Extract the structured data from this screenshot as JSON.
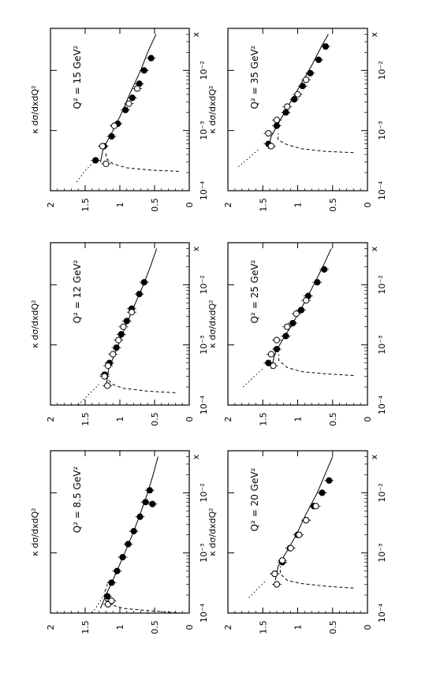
{
  "figure": {
    "orientation": "rotated-90-counterclockwise",
    "xlabel": "x",
    "ylabel": "κ dσ/dxdQ²",
    "xscale": "log",
    "xlim": [
      0.0001,
      0.05
    ],
    "ylim": [
      0,
      2
    ],
    "yticks": [
      "0",
      "0.5",
      "1",
      "1.5",
      "2"
    ],
    "xticks": [
      "10⁻⁴",
      "10⁻³",
      "10⁻²"
    ],
    "legend": "none",
    "grid": false
  },
  "chart_data": [
    {
      "type": "scatter",
      "title": "Q² = 8.5 GeV²",
      "xlabel": "x",
      "ylabel": "κ dσ/dxdQ²",
      "xscale": "log",
      "ylim": [
        0,
        2
      ],
      "series": [
        {
          "marker": "filled-circle",
          "x": [
            0.00019,
            0.00032,
            0.0005,
            0.00085,
            0.0014,
            0.0023,
            0.004,
            0.007,
            0.011
          ],
          "y": [
            1.18,
            1.12,
            1.04,
            0.96,
            0.88,
            0.8,
            0.71,
            0.63,
            0.57
          ]
        },
        {
          "marker": "open-circle",
          "x": [
            0.00014,
            0.00016
          ],
          "y": [
            1.17,
            1.12
          ]
        },
        {
          "marker": "filled-circle",
          "x": [
            0.0065
          ],
          "y": [
            0.53
          ]
        }
      ],
      "curves": [
        {
          "style": "solid",
          "x": [
            0.00012,
            0.0002,
            0.0004,
            0.001,
            0.002,
            0.004,
            0.01,
            0.02,
            0.04
          ],
          "y": [
            1.28,
            1.2,
            1.08,
            0.93,
            0.82,
            0.72,
            0.6,
            0.52,
            0.45
          ]
        },
        {
          "style": "dotted",
          "x": [
            0.0001,
            0.00013,
            0.00018
          ],
          "y": [
            1.4,
            1.33,
            1.25
          ]
        },
        {
          "style": "dashed",
          "x": [
            0.0001,
            0.00011,
            0.00012,
            0.00014,
            0.00017,
            0.00022,
            0.0003
          ],
          "y": [
            0.1,
            0.6,
            0.95,
            1.15,
            1.22,
            1.22,
            1.18
          ]
        }
      ]
    },
    {
      "type": "scatter",
      "title": "Q² = 12 GeV²",
      "xlabel": "x",
      "ylabel": "κ dσ/dxdQ²",
      "xscale": "log",
      "ylim": [
        0,
        2
      ],
      "series": [
        {
          "marker": "filled-circle",
          "x": [
            0.00032,
            0.0005,
            0.0009,
            0.0015,
            0.0025,
            0.004,
            0.007,
            0.011
          ],
          "y": [
            1.22,
            1.15,
            1.05,
            0.98,
            0.9,
            0.83,
            0.72,
            0.65
          ]
        },
        {
          "marker": "open-circle",
          "x": [
            0.00021,
            0.0003,
            0.00045,
            0.0007,
            0.0012,
            0.002,
            0.0035
          ],
          "y": [
            1.18,
            1.22,
            1.17,
            1.1,
            1.02,
            0.95,
            0.83
          ]
        }
      ],
      "curves": [
        {
          "style": "solid",
          "x": [
            0.0002,
            0.0004,
            0.001,
            0.002,
            0.004,
            0.01,
            0.02,
            0.04
          ],
          "y": [
            1.2,
            1.16,
            1.02,
            0.92,
            0.81,
            0.66,
            0.56,
            0.47
          ]
        },
        {
          "style": "dotted",
          "x": [
            0.0001,
            0.00015,
            0.00022
          ],
          "y": [
            1.6,
            1.45,
            1.3
          ]
        },
        {
          "style": "dashed",
          "x": [
            0.00016,
            0.00017,
            0.00019,
            0.00022,
            0.00027,
            0.00035
          ],
          "y": [
            0.2,
            0.6,
            0.95,
            1.1,
            1.18,
            1.18
          ]
        }
      ]
    },
    {
      "type": "scatter",
      "title": "Q² = 15 GeV²",
      "xlabel": "x",
      "ylabel": "κ dσ/dxdQ²",
      "xscale": "log",
      "ylim": [
        0,
        2
      ],
      "series": [
        {
          "marker": "filled-circle",
          "x": [
            0.00032,
            0.00055,
            0.0008,
            0.0013,
            0.0022,
            0.0035,
            0.006,
            0.01,
            0.016
          ],
          "y": [
            1.35,
            1.23,
            1.12,
            1.03,
            0.92,
            0.82,
            0.72,
            0.65,
            0.55
          ]
        },
        {
          "marker": "open-circle",
          "x": [
            0.00028,
            0.00055,
            0.0012,
            0.0028,
            0.005
          ],
          "y": [
            1.2,
            1.25,
            1.08,
            0.87,
            0.75
          ]
        }
      ],
      "curves": [
        {
          "style": "solid",
          "x": [
            0.0003,
            0.0005,
            0.001,
            0.002,
            0.004,
            0.01,
            0.02,
            0.04
          ],
          "y": [
            1.28,
            1.24,
            1.1,
            0.97,
            0.86,
            0.7,
            0.6,
            0.48
          ]
        },
        {
          "style": "dotted",
          "x": [
            0.00014,
            0.0002,
            0.0003
          ],
          "y": [
            1.62,
            1.52,
            1.38
          ]
        },
        {
          "style": "dashed",
          "x": [
            0.00021,
            0.00022,
            0.00024,
            0.00028,
            0.00035,
            0.00045
          ],
          "y": [
            0.15,
            0.55,
            0.9,
            1.1,
            1.2,
            1.2
          ]
        }
      ]
    },
    {
      "type": "scatter",
      "title": "Q² = 20 GeV²",
      "xlabel": "x",
      "ylabel": "κ dσ/dxdQ²",
      "xscale": "log",
      "ylim": [
        0,
        2
      ],
      "series": [
        {
          "marker": "filled-circle",
          "x": [
            0.00045,
            0.0007,
            0.0012,
            0.002,
            0.0035,
            0.006,
            0.01,
            0.016
          ],
          "y": [
            1.33,
            1.22,
            1.11,
            1.0,
            0.88,
            0.77,
            0.65,
            0.55
          ]
        },
        {
          "marker": "open-circle",
          "x": [
            0.0003,
            0.00045,
            0.00075,
            0.0012,
            0.002,
            0.0035,
            0.006
          ],
          "y": [
            1.3,
            1.33,
            1.22,
            1.1,
            0.98,
            0.88,
            0.74
          ]
        }
      ],
      "curves": [
        {
          "style": "solid",
          "x": [
            0.00035,
            0.0006,
            0.001,
            0.002,
            0.004,
            0.01,
            0.02,
            0.04
          ],
          "y": [
            1.32,
            1.28,
            1.17,
            1.02,
            0.9,
            0.72,
            0.61,
            0.5
          ]
        },
        {
          "style": "dotted",
          "x": [
            0.00018,
            0.00025,
            0.00035
          ],
          "y": [
            1.7,
            1.58,
            1.45
          ]
        },
        {
          "style": "dashed",
          "x": [
            0.00026,
            0.00028,
            0.00031,
            0.00035,
            0.00045,
            0.0006
          ],
          "y": [
            0.2,
            0.6,
            0.95,
            1.15,
            1.25,
            1.25
          ]
        }
      ]
    },
    {
      "type": "scatter",
      "title": "Q² = 25 GeV²",
      "xlabel": "x",
      "ylabel": "κ dσ/dxdQ²",
      "xscale": "log",
      "ylim": [
        0,
        2
      ],
      "series": [
        {
          "marker": "filled-circle",
          "x": [
            0.0005,
            0.00085,
            0.0014,
            0.0023,
            0.0038,
            0.0065,
            0.011,
            0.018
          ],
          "y": [
            1.42,
            1.3,
            1.17,
            1.07,
            0.95,
            0.85,
            0.72,
            0.62
          ]
        },
        {
          "marker": "open-circle",
          "x": [
            0.00045,
            0.0007,
            0.0012,
            0.002,
            0.0033,
            0.0055
          ],
          "y": [
            1.35,
            1.38,
            1.3,
            1.15,
            1.02,
            0.88
          ]
        }
      ],
      "curves": [
        {
          "style": "solid",
          "x": [
            0.0004,
            0.0007,
            0.0012,
            0.002,
            0.004,
            0.01,
            0.02,
            0.04
          ],
          "y": [
            1.38,
            1.33,
            1.22,
            1.1,
            0.95,
            0.77,
            0.64,
            0.52
          ]
        },
        {
          "style": "dotted",
          "x": [
            0.0002,
            0.0003,
            0.0004
          ],
          "y": [
            1.78,
            1.62,
            1.5
          ]
        },
        {
          "style": "dashed",
          "x": [
            0.00031,
            0.00033,
            0.00036,
            0.00042,
            0.00055,
            0.0007
          ],
          "y": [
            0.2,
            0.6,
            0.95,
            1.15,
            1.27,
            1.27
          ]
        }
      ]
    },
    {
      "type": "scatter",
      "title": "Q² = 35 GeV²",
      "xlabel": "x",
      "ylabel": "κ dσ/dxdQ²",
      "xscale": "log",
      "ylim": [
        0,
        2
      ],
      "series": [
        {
          "marker": "filled-circle",
          "x": [
            0.0006,
            0.0012,
            0.002,
            0.0033,
            0.0055,
            0.009,
            0.015,
            0.025
          ],
          "y": [
            1.42,
            1.3,
            1.17,
            1.05,
            0.93,
            0.82,
            0.7,
            0.6
          ]
        },
        {
          "marker": "open-circle",
          "x": [
            0.00055,
            0.0009,
            0.0015,
            0.0025,
            0.004,
            0.007
          ],
          "y": [
            1.38,
            1.42,
            1.3,
            1.15,
            1.0,
            0.88
          ]
        }
      ],
      "curves": [
        {
          "style": "solid",
          "x": [
            0.0005,
            0.0008,
            0.0015,
            0.003,
            0.006,
            0.012,
            0.025,
            0.04
          ],
          "y": [
            1.42,
            1.38,
            1.25,
            1.1,
            0.95,
            0.8,
            0.66,
            0.56
          ]
        },
        {
          "style": "dotted",
          "x": [
            0.00025,
            0.00035,
            0.0005
          ],
          "y": [
            1.85,
            1.7,
            1.55
          ]
        },
        {
          "style": "dashed",
          "x": [
            0.00043,
            0.00045,
            0.0005,
            0.00058,
            0.0007,
            0.0009
          ],
          "y": [
            0.2,
            0.6,
            0.95,
            1.15,
            1.28,
            1.28
          ]
        }
      ]
    }
  ]
}
